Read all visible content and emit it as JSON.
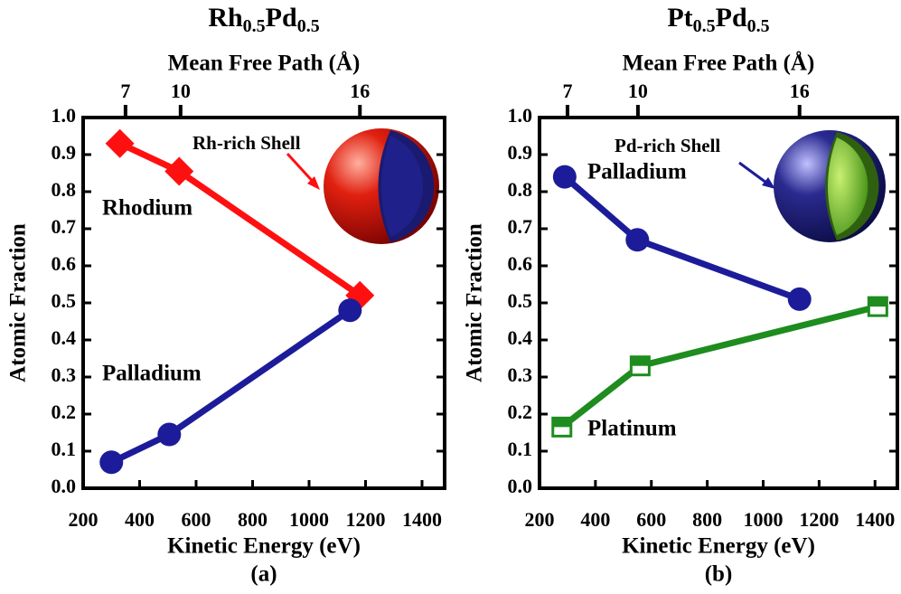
{
  "chart_data": [
    {
      "type": "line",
      "title": [
        "Rh",
        "0.5",
        "Pd",
        "0.5"
      ],
      "caption": "(a)",
      "x_label": "Kinetic Energy (eV)",
      "y_label": "Atomic Fraction",
      "x2_label": "Mean Free Path (Å)",
      "xlim": [
        200,
        1480
      ],
      "xticks": [
        200,
        400,
        600,
        800,
        1000,
        1200,
        1400
      ],
      "ylim": [
        0,
        1
      ],
      "yticks": [
        {
          "value": 0,
          "label": "0.0"
        },
        0.1,
        0.2,
        0.3,
        0.4,
        0.5,
        0.6,
        0.7,
        0.8,
        0.9,
        {
          "value": 1,
          "label": "1.0"
        }
      ],
      "x2ticks": [
        7,
        10,
        16
      ],
      "x2ticks_kinetic_energy": [
        350,
        545,
        1180
      ],
      "series": [
        {
          "name": "Rhodium",
          "color": "#ff1010",
          "marker": "diamond",
          "x": [
            330,
            540,
            1180
          ],
          "values": [
            0.93,
            0.855,
            0.52
          ]
        },
        {
          "name": "Palladium",
          "color": "#1c1c9a",
          "marker": "circle",
          "x": [
            300,
            505,
            1145
          ],
          "values": [
            0.07,
            0.145,
            0.48
          ]
        }
      ],
      "annotations": [
        {
          "text": "Rh-rich Shell",
          "color": "#ff1010"
        }
      ]
    },
    {
      "type": "line",
      "title": [
        "Pt",
        "0.5",
        "Pd",
        "0.5"
      ],
      "caption": "(b)",
      "x_label": "Kinetic Energy (eV)",
      "y_label": "Atomic Fraction",
      "x2_label": "Mean Free Path (Å)",
      "xlim": [
        200,
        1480
      ],
      "xticks": [
        200,
        400,
        600,
        800,
        1000,
        1200,
        1400
      ],
      "ylim": [
        0,
        1
      ],
      "yticks": [
        {
          "value": 0,
          "label": "0.0"
        },
        0.1,
        0.2,
        0.3,
        0.4,
        0.5,
        0.6,
        0.7,
        0.8,
        0.9,
        {
          "value": 1,
          "label": "1.0"
        }
      ],
      "x2ticks": [
        7,
        10,
        16
      ],
      "x2ticks_kinetic_energy": [
        300,
        552,
        1130
      ],
      "series": [
        {
          "name": "Palladium",
          "color": "#1c1c9a",
          "marker": "circle",
          "x": [
            290,
            550,
            1130
          ],
          "values": [
            0.84,
            0.67,
            0.51
          ]
        },
        {
          "name": "Platinum",
          "color": "#1e8c1e",
          "marker": "halfsquare",
          "x": [
            280,
            560,
            1410
          ],
          "values": [
            0.165,
            0.33,
            0.49
          ]
        }
      ],
      "annotations": [
        {
          "text": "Pd-rich Shell",
          "color": "#1c1c9a"
        }
      ]
    }
  ]
}
